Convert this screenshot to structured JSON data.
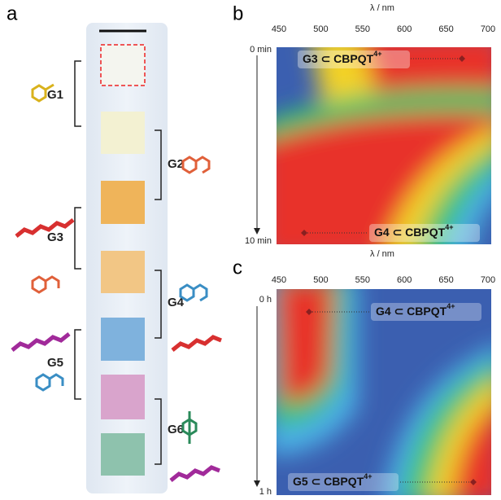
{
  "panels": {
    "a": {
      "label": "a",
      "steps": [
        "G1",
        "G2",
        "G3",
        "G4",
        "G5",
        "G6"
      ]
    },
    "b": {
      "label": "b",
      "axis_title": "λ / nm",
      "ticks": [
        450,
        500,
        550,
        600,
        650,
        700
      ],
      "time_start": "0 min",
      "time_end": "10 min",
      "annotations": [
        {
          "guest": "G3 ⊂ CBPQT",
          "charge": "4+"
        },
        {
          "guest": "G4 ⊂ CBPQT",
          "charge": "4+"
        }
      ]
    },
    "c": {
      "label": "c",
      "axis_title": "λ / nm",
      "ticks": [
        450,
        500,
        550,
        600,
        650,
        700
      ],
      "time_start": "0 h",
      "time_end": "1 h",
      "annotations": [
        {
          "guest": "G4 ⊂ CBPQT",
          "charge": "4+"
        },
        {
          "guest": "G5 ⊂ CBPQT",
          "charge": "4+"
        }
      ]
    }
  }
}
